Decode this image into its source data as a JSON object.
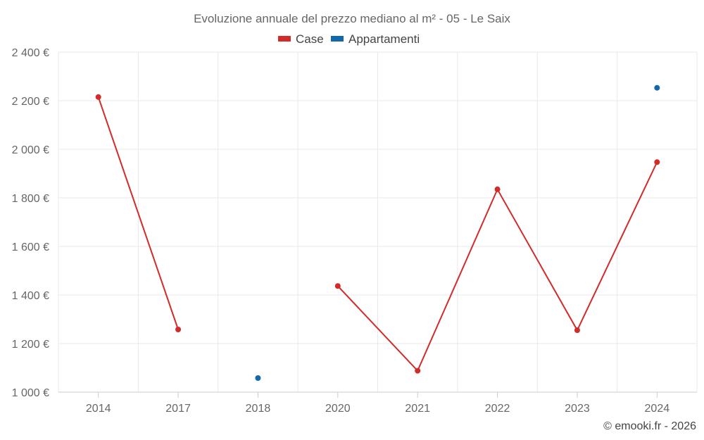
{
  "chart_data": {
    "type": "line",
    "title": "Evoluzione annuale del prezzo mediano al m² - 05 - Le Saix",
    "categories": [
      "2014",
      "2017",
      "2018",
      "2020",
      "2021",
      "2022",
      "2023",
      "2024"
    ],
    "y_ticks": [
      "1 000 €",
      "1 200 €",
      "1 400 €",
      "1 600 €",
      "1 800 €",
      "2 000 €",
      "2 200 €",
      "2 400 €"
    ],
    "ylim": [
      1000,
      2400
    ],
    "grid": true,
    "legend_position": "top-center",
    "series": [
      {
        "name": "Case",
        "color": "#d32a2a",
        "values": [
          2215,
          1258,
          null,
          1437,
          1088,
          1835,
          1255,
          1947
        ]
      },
      {
        "name": "Appartamenti",
        "color": "#1268a8",
        "values": [
          null,
          null,
          1058,
          null,
          null,
          null,
          null,
          2253
        ]
      }
    ],
    "credit": "© emooki.fr - 2026"
  }
}
